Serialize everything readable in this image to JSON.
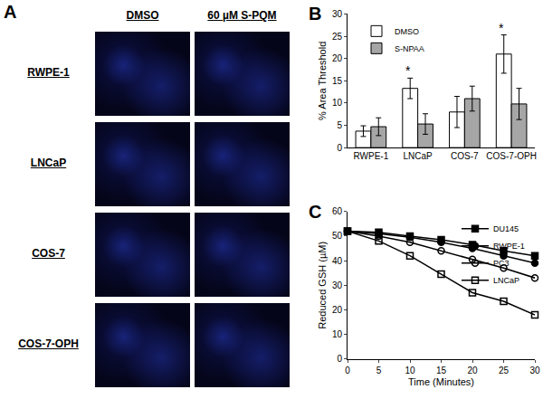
{
  "chart_data": [
    {
      "type": "bar",
      "title": "B",
      "y_label": "% Area Threshold",
      "categories": [
        "RWPE-1",
        "LNCaP",
        "COS-7",
        "COS-7-OPH"
      ],
      "series": [
        {
          "name": "DMSO",
          "color": "#ffffff",
          "values": [
            3.7,
            13.3,
            8.0,
            21.0
          ],
          "errors": [
            1.2,
            2.3,
            3.5,
            4.3
          ]
        },
        {
          "name": "S-NPAA",
          "color": "#a6a6a6",
          "values": [
            4.7,
            5.3,
            11.0,
            9.8
          ],
          "errors": [
            2.0,
            2.3,
            2.8,
            3.5
          ]
        }
      ],
      "ylim": [
        0,
        30
      ],
      "yticks": [
        0,
        5,
        10,
        15,
        20,
        25,
        30
      ],
      "grid": false,
      "legend": "upper left",
      "annotations": [
        {
          "category": "LNCaP",
          "text": "*"
        },
        {
          "category": "COS-7-OPH",
          "text": "*"
        }
      ]
    },
    {
      "type": "line",
      "title": "C",
      "x_label": "Time (Minutes)",
      "y_label": "Reduced GSH (µM)",
      "x": [
        0,
        5,
        10,
        15,
        20,
        25,
        30
      ],
      "series": [
        {
          "name": "DU145",
          "color": "#000000",
          "marker": "square",
          "values": [
            52,
            51.5,
            50,
            48.5,
            46.5,
            44,
            42
          ]
        },
        {
          "name": "RWPE-1",
          "color": "#000000",
          "marker": "circle",
          "values": [
            52,
            51,
            49.5,
            47.5,
            45,
            42,
            39
          ]
        },
        {
          "name": "PC3",
          "color": "#000000",
          "marker": "circle-open",
          "values": [
            52,
            50,
            47.5,
            44,
            40.5,
            37,
            33
          ]
        },
        {
          "name": "LNCaP",
          "color": "#000000",
          "marker": "square-open",
          "values": [
            52,
            48,
            42,
            34.5,
            27,
            23.5,
            18
          ]
        }
      ],
      "xlim": [
        0,
        30
      ],
      "xticks": [
        0,
        5,
        10,
        15,
        20,
        25,
        30
      ],
      "ylim": [
        0,
        60
      ],
      "yticks": [
        0,
        10,
        20,
        30,
        40,
        50,
        60
      ],
      "grid": false,
      "legend": "upper right"
    }
  ],
  "panel_a": {
    "label": "A",
    "columns": [
      "DMSO",
      "60 µM S-PQM"
    ],
    "rows": [
      "RWPE-1",
      "LNCaP",
      "COS-7",
      "COS-7-OPH"
    ]
  }
}
